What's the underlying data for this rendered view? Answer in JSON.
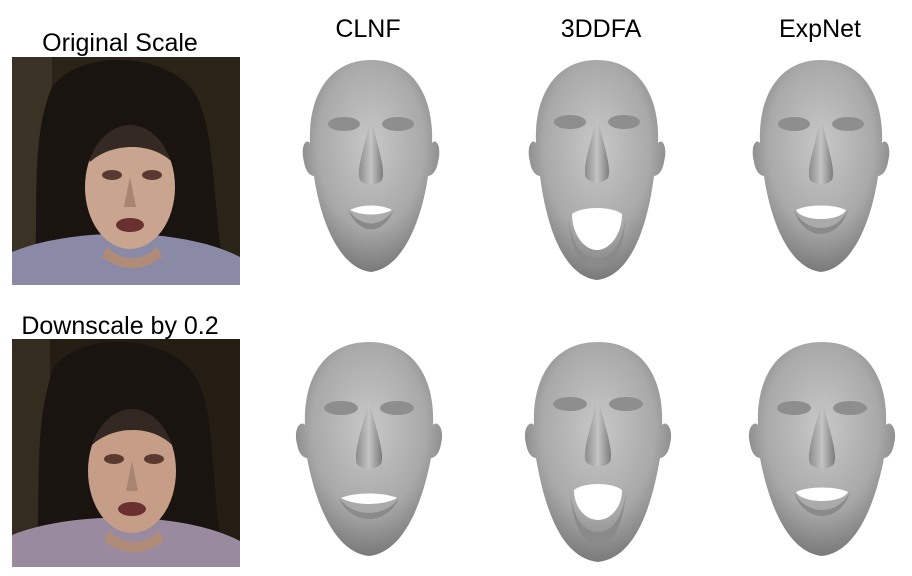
{
  "rows": [
    {
      "label": "Original Scale"
    },
    {
      "label": "Downscale by 0.2"
    }
  ],
  "columns": [
    {
      "title": "CLNF",
      "mouth": "small"
    },
    {
      "title": "3DDFA",
      "mouth": "open"
    },
    {
      "title": "ExpNet",
      "mouth": "medium"
    }
  ],
  "image_content": {
    "photo_subject": "crying-woman-photo",
    "render_subject": "3d-face-mesh-render"
  },
  "colors": {
    "face_fill": "#a9a9a9",
    "face_highlight": "#c8c8c8",
    "face_shadow": "#6e6e6e",
    "photo_bg": "#2a2418",
    "hair": "#1a1410",
    "skin": "#c9a48e"
  }
}
